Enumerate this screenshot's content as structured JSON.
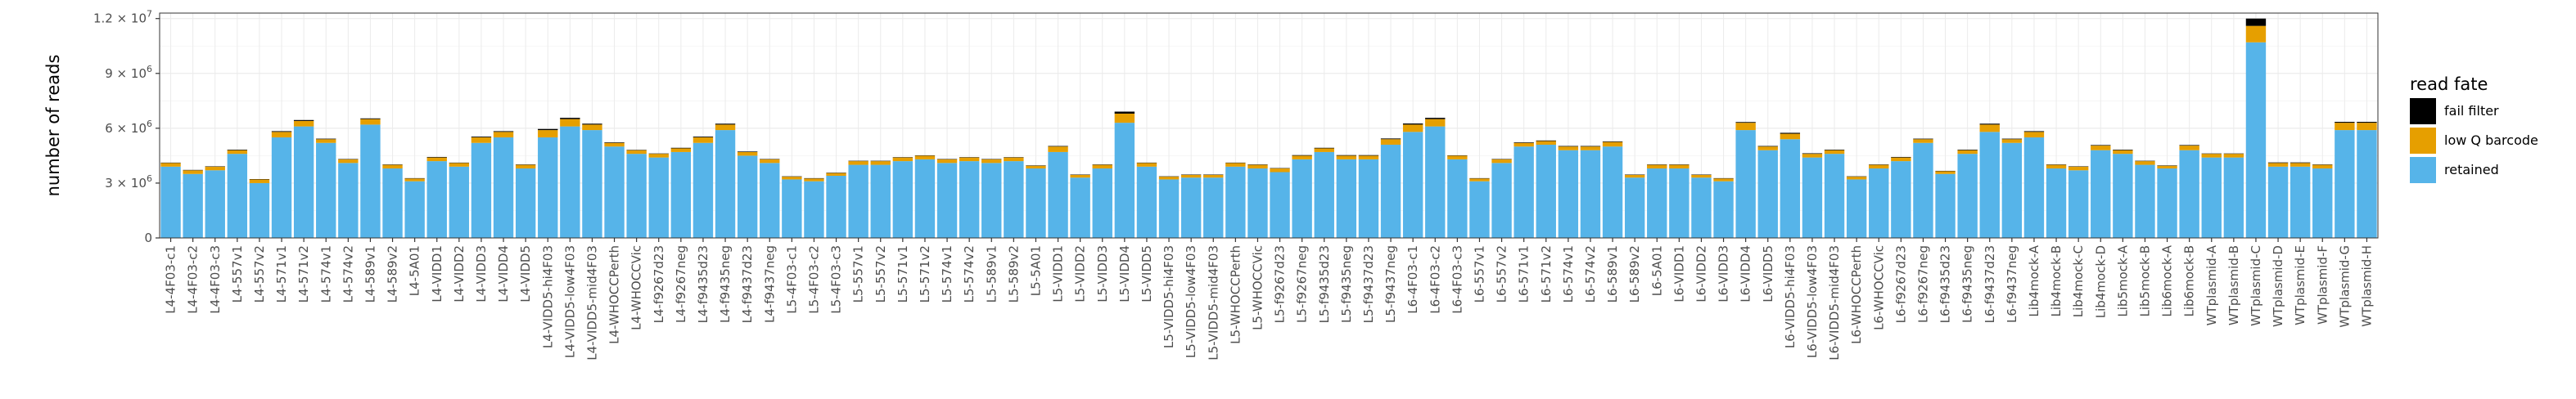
{
  "chart_data": {
    "type": "bar",
    "stacked": true,
    "ylabel": "number of reads",
    "ylim": [
      0,
      12300000
    ],
    "y_ticks": [
      {
        "value": 0,
        "base": "0",
        "exp": ""
      },
      {
        "value": 3000000,
        "base": "3 × 10",
        "exp": "6"
      },
      {
        "value": 6000000,
        "base": "6 × 10",
        "exp": "6"
      },
      {
        "value": 9000000,
        "base": "9 × 10",
        "exp": "6"
      },
      {
        "value": 12000000,
        "base": "1.2 × 10",
        "exp": "7"
      }
    ],
    "grid": true,
    "legend": {
      "title": "read fate",
      "placement": "right",
      "entries": [
        {
          "name": "fail filter",
          "color": "#000000"
        },
        {
          "name": "low Q barcode",
          "color": "#E69F00"
        },
        {
          "name": "retained",
          "color": "#56B4E9"
        }
      ]
    },
    "categories": [
      "L4-4F03-c1",
      "L4-4F03-c2",
      "L4-4F03-c3",
      "L4-557v1",
      "L4-557v2",
      "L4-571v1",
      "L4-571v2",
      "L4-574v1",
      "L4-574v2",
      "L4-589v1",
      "L4-589v2",
      "L4-5A01",
      "L4-VIDD1",
      "L4-VIDD2",
      "L4-VIDD3",
      "L4-VIDD4",
      "L4-VIDD5",
      "L4-VIDD5-hi4F03",
      "L4-VIDD5-low4F03",
      "L4-VIDD5-mid4F03",
      "L4-WHOCCPerth",
      "L4-WHOCCVic",
      "L4-f9267d23",
      "L4-f9267neg",
      "L4-f9435d23",
      "L4-f9435neg",
      "L4-f9437d23",
      "L4-f9437neg",
      "L5-4F03-c1",
      "L5-4F03-c2",
      "L5-4F03-c3",
      "L5-557v1",
      "L5-557v2",
      "L5-571v1",
      "L5-571v2",
      "L5-574v1",
      "L5-574v2",
      "L5-589v1",
      "L5-589v2",
      "L5-5A01",
      "L5-VIDD1",
      "L5-VIDD2",
      "L5-VIDD3",
      "L5-VIDD4",
      "L5-VIDD5",
      "L5-VIDD5-hi4F03",
      "L5-VIDD5-low4F03",
      "L5-VIDD5-mid4F03",
      "L5-WHOCCPerth",
      "L5-WHOCCVic",
      "L5-f9267d23",
      "L5-f9267neg",
      "L5-f9435d23",
      "L5-f9435neg",
      "L5-f9437d23",
      "L5-f9437neg",
      "L6-4F03-c1",
      "L6-4F03-c2",
      "L6-4F03-c3",
      "L6-557v1",
      "L6-557v2",
      "L6-571v1",
      "L6-571v2",
      "L6-574v1",
      "L6-574v2",
      "L6-589v1",
      "L6-589v2",
      "L6-5A01",
      "L6-VIDD1",
      "L6-VIDD2",
      "L6-VIDD3",
      "L6-VIDD4",
      "L6-VIDD5",
      "L6-VIDD5-hi4F03",
      "L6-VIDD5-low4F03",
      "L6-VIDD5-mid4F03",
      "L6-WHOCCPerth",
      "L6-WHOCCVic",
      "L6-f9267d23",
      "L6-f9267neg",
      "L6-f9435d23",
      "L6-f9435neg",
      "L6-f9437d23",
      "L6-f9437neg",
      "Lib4mock-A",
      "Lib4mock-B",
      "Lib4mock-C",
      "Lib4mock-D",
      "Lib5mock-A",
      "Lib5mock-B",
      "Lib6mock-A",
      "Lib6mock-B",
      "WTplasmid-A",
      "WTplasmid-B",
      "WTplasmid-C",
      "WTplasmid-D",
      "WTplasmid-E",
      "WTplasmid-F",
      "WTplasmid-G",
      "WTplasmid-H"
    ],
    "series": [
      {
        "name": "retained",
        "color": "#56B4E9",
        "values": [
          3900000,
          3500000,
          3700000,
          4600000,
          3000000,
          5500000,
          6100000,
          5200000,
          4100000,
          6200000,
          3800000,
          3100000,
          4200000,
          3900000,
          5200000,
          5500000,
          3800000,
          5500000,
          6100000,
          5900000,
          5000000,
          4600000,
          4400000,
          4700000,
          5200000,
          5900000,
          4500000,
          4100000,
          3200000,
          3100000,
          3400000,
          4000000,
          4000000,
          4200000,
          4300000,
          4100000,
          4200000,
          4100000,
          4200000,
          3800000,
          4700000,
          3300000,
          3800000,
          6300000,
          3900000,
          3200000,
          3300000,
          3300000,
          3900000,
          3800000,
          3600000,
          4300000,
          4700000,
          4300000,
          4300000,
          5100000,
          5800000,
          6100000,
          4300000,
          3100000,
          4100000,
          5000000,
          5100000,
          4800000,
          4800000,
          5000000,
          3300000,
          3800000,
          3800000,
          3300000,
          3100000,
          5900000,
          4800000,
          5400000,
          4400000,
          4600000,
          3200000,
          3800000,
          4200000,
          5200000,
          3500000,
          4600000,
          5800000,
          5200000,
          5500000,
          3800000,
          3700000,
          4800000,
          4600000,
          4000000,
          3800000,
          4800000,
          4400000,
          4400000,
          10700000,
          3900000,
          3900000,
          3800000,
          5900000,
          5900000
        ]
      },
      {
        "name": "low Q barcode",
        "color": "#E69F00",
        "values": [
          200000,
          200000,
          200000,
          200000,
          200000,
          300000,
          300000,
          200000,
          200000,
          300000,
          200000,
          150000,
          200000,
          200000,
          300000,
          300000,
          200000,
          400000,
          400000,
          300000,
          200000,
          200000,
          200000,
          200000,
          300000,
          300000,
          200000,
          200000,
          150000,
          150000,
          150000,
          200000,
          200000,
          200000,
          200000,
          200000,
          200000,
          200000,
          200000,
          150000,
          300000,
          150000,
          200000,
          500000,
          200000,
          150000,
          150000,
          150000,
          200000,
          200000,
          200000,
          200000,
          200000,
          200000,
          200000,
          300000,
          400000,
          400000,
          200000,
          150000,
          200000,
          200000,
          200000,
          200000,
          200000,
          250000,
          150000,
          200000,
          200000,
          150000,
          150000,
          400000,
          200000,
          300000,
          200000,
          200000,
          150000,
          200000,
          200000,
          200000,
          150000,
          200000,
          400000,
          200000,
          300000,
          200000,
          200000,
          250000,
          200000,
          200000,
          150000,
          250000,
          200000,
          200000,
          900000,
          200000,
          200000,
          200000,
          400000,
          400000
        ]
      },
      {
        "name": "fail filter",
        "color": "#000000",
        "values": [
          20000,
          20000,
          20000,
          30000,
          20000,
          40000,
          50000,
          30000,
          20000,
          40000,
          20000,
          20000,
          30000,
          20000,
          40000,
          40000,
          20000,
          60000,
          70000,
          50000,
          30000,
          20000,
          20000,
          30000,
          40000,
          50000,
          30000,
          20000,
          20000,
          20000,
          20000,
          20000,
          20000,
          20000,
          20000,
          20000,
          20000,
          20000,
          20000,
          20000,
          30000,
          20000,
          20000,
          110000,
          20000,
          20000,
          20000,
          20000,
          20000,
          20000,
          20000,
          30000,
          30000,
          30000,
          30000,
          40000,
          60000,
          70000,
          20000,
          20000,
          20000,
          30000,
          30000,
          30000,
          30000,
          30000,
          20000,
          20000,
          20000,
          20000,
          20000,
          40000,
          30000,
          50000,
          30000,
          30000,
          20000,
          20000,
          30000,
          30000,
          20000,
          30000,
          50000,
          30000,
          40000,
          20000,
          20000,
          30000,
          30000,
          20000,
          20000,
          30000,
          20000,
          20000,
          400000,
          30000,
          30000,
          20000,
          50000,
          50000
        ]
      }
    ]
  }
}
